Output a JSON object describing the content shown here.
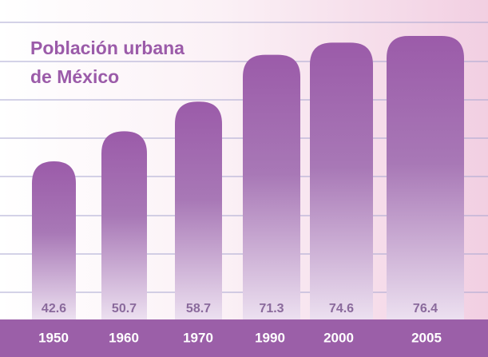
{
  "chart_data": {
    "type": "bar",
    "title": [
      "Población urbana",
      "de México"
    ],
    "categories": [
      "1950",
      "1960",
      "1970",
      "1990",
      "2000",
      "2005"
    ],
    "values": [
      42.6,
      50.7,
      58.7,
      71.3,
      74.6,
      76.4
    ],
    "color": "#9b5ba9",
    "ylim": [
      0,
      85
    ]
  }
}
